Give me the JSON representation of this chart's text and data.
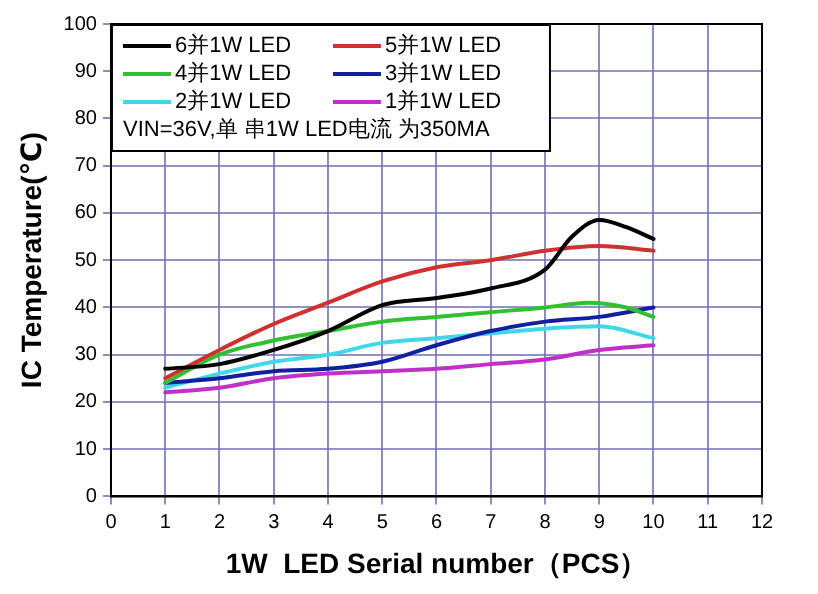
{
  "chart_data": {
    "type": "line",
    "xlabel": "1W  LED Serial number（PCS）",
    "ylabel": "IC Temperature(℃)",
    "xlim": [
      0,
      12
    ],
    "xticks": [
      0,
      1,
      2,
      3,
      4,
      5,
      6,
      7,
      8,
      9,
      10,
      11,
      12
    ],
    "ylim": [
      0,
      100
    ],
    "yticks": [
      0,
      10,
      20,
      30,
      40,
      50,
      60,
      70,
      80,
      90,
      100
    ],
    "grid": true,
    "legend": "top left",
    "marker": "none",
    "line_style": "solid",
    "annotations": [
      "VIN=36V,单 串1W LED电流 为350MA"
    ],
    "series": [
      {
        "name": "6并1W LED",
        "color": "#000000",
        "x": [
          1,
          2,
          3,
          4,
          5,
          6,
          7,
          8,
          8.5,
          9,
          9.5,
          10
        ],
        "values": [
          27,
          28,
          31,
          35,
          40.5,
          42,
          44,
          48,
          55,
          58.5,
          57,
          54.5
        ]
      },
      {
        "name": "5并1W LED",
        "color": "#d03030",
        "x": [
          1,
          2,
          3,
          4,
          5,
          6,
          7,
          8,
          9,
          10
        ],
        "values": [
          25,
          31,
          36.5,
          41,
          45.5,
          48.5,
          50,
          52,
          53,
          52
        ]
      },
      {
        "name": "4并1W LED",
        "color": "#30c030",
        "x": [
          1,
          2,
          3,
          4,
          5,
          6,
          7,
          8,
          8.8,
          9.5,
          10
        ],
        "values": [
          24,
          30,
          33,
          35,
          37,
          38,
          39,
          40,
          41,
          40,
          38
        ]
      },
      {
        "name": "3并1W LED",
        "color": "#1020a0",
        "x": [
          1,
          2,
          3,
          4,
          5,
          6,
          7,
          8,
          9,
          10
        ],
        "values": [
          24,
          25,
          26.5,
          27,
          28.5,
          32,
          35,
          37,
          38,
          40
        ]
      },
      {
        "name": "2并1W LED",
        "color": "#40d8e8",
        "x": [
          1,
          2,
          3,
          4,
          5,
          6,
          7,
          8,
          9,
          10
        ],
        "values": [
          23,
          26,
          28.5,
          30,
          32.5,
          33.5,
          34.5,
          35.5,
          36,
          33.5
        ]
      },
      {
        "name": "1并1W LED",
        "color": "#c030c8",
        "x": [
          1,
          2,
          3,
          4,
          5,
          6,
          7,
          8,
          9,
          10
        ],
        "values": [
          22,
          23,
          25,
          26,
          26.5,
          27,
          28,
          29,
          31,
          32
        ]
      }
    ]
  }
}
